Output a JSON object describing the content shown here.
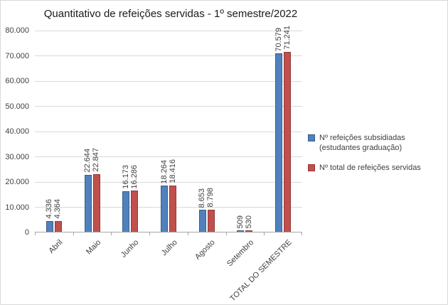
{
  "chart_data": {
    "type": "bar",
    "title": "Quantitativo de refeições servidas - 1º semestre/2022",
    "categories": [
      "Abril",
      "Maio",
      "Junho",
      "Julho",
      "Agosto",
      "Setembro",
      "TOTAL DO SEMESTRE"
    ],
    "series": [
      {
        "name": "Nº refeições subsidiadas (estudantes graduação)",
        "color": "#4f81bd",
        "border_color": "#385d8a",
        "values": [
          4336,
          22644,
          16173,
          18264,
          8653,
          509,
          70579
        ],
        "labels": [
          "4.336",
          "22.644",
          "16.173",
          "18.264",
          "8.653",
          "509",
          "70.579"
        ]
      },
      {
        "name": "Nº total de refeições servidas",
        "color": "#c0504d",
        "border_color": "#953734",
        "values": [
          4364,
          22847,
          16286,
          18416,
          8798,
          530,
          71241
        ],
        "labels": [
          "4.364",
          "22.847",
          "16.286",
          "18.416",
          "8.798",
          "530",
          "71.241"
        ]
      }
    ],
    "ylim": [
      0,
      80000
    ],
    "ytick_step": 10000,
    "ytick_labels": [
      "0",
      "10.000",
      "20.000",
      "30.000",
      "40.000",
      "50.000",
      "60.000",
      "70.000",
      "80.000"
    ],
    "grid": true,
    "legend_position": "right"
  }
}
